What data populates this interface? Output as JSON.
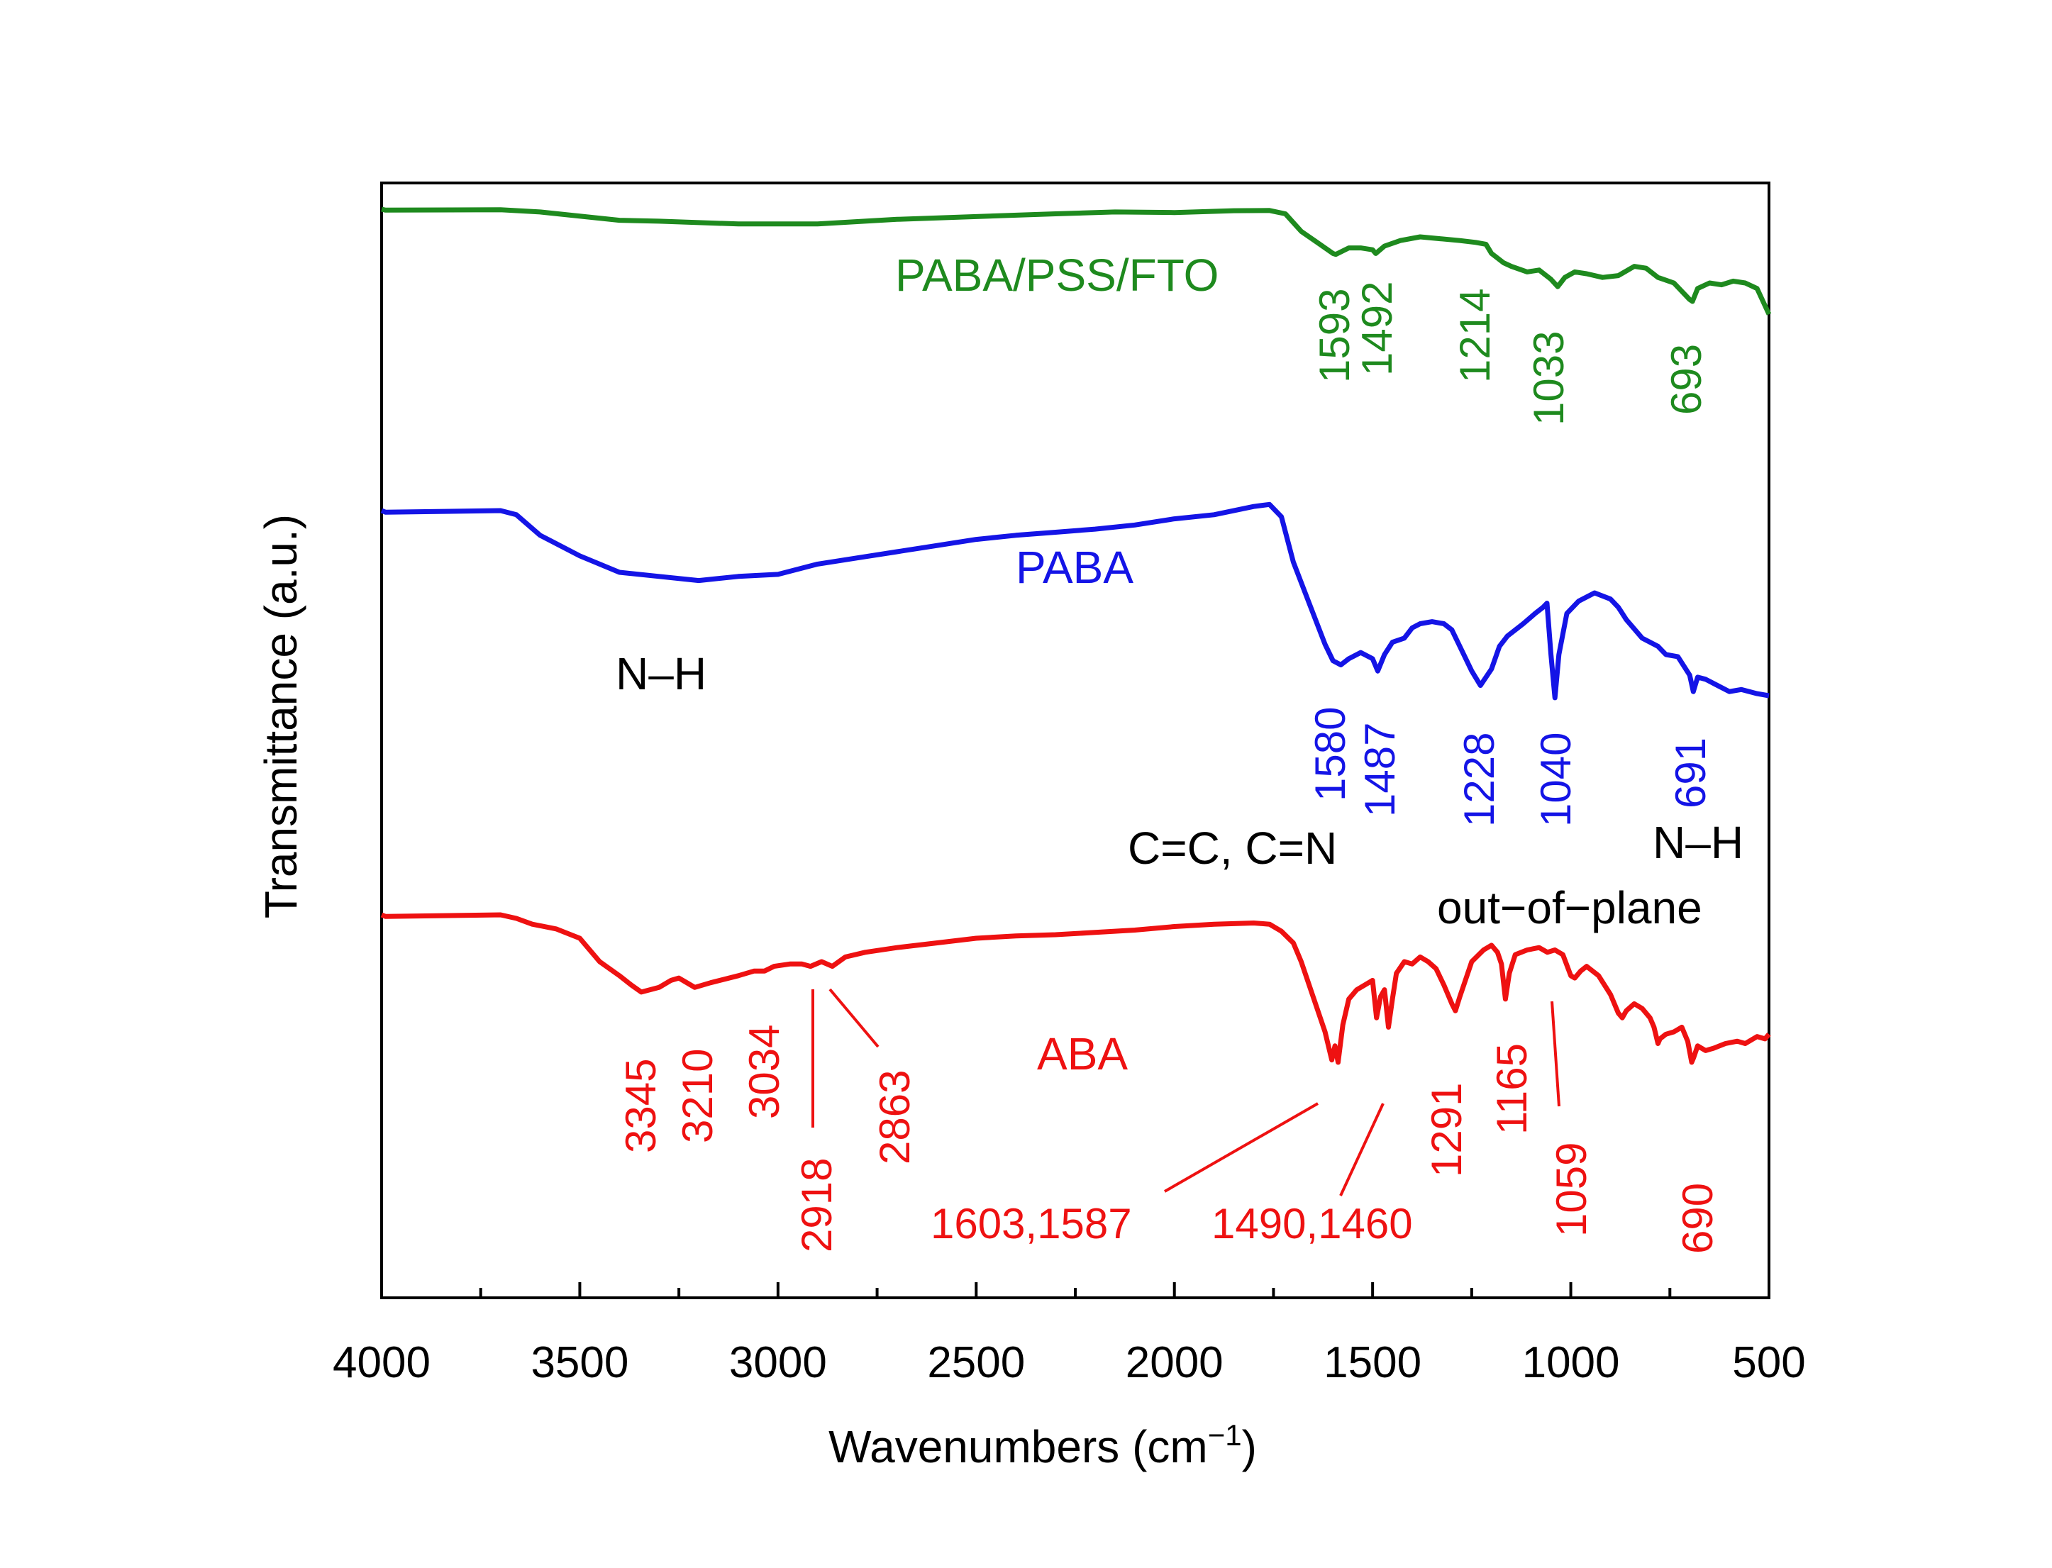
{
  "chart_data": {
    "type": "line",
    "title": "",
    "xlabel": "Wavenumbers (cm",
    "xlabel_sup": "−1",
    "xlabel_close": ")",
    "ylabel": "Transmittance (a.u.)",
    "xlim": [
      4000,
      500
    ],
    "x_reversed": true,
    "x_ticks": [
      4000,
      3500,
      3000,
      2500,
      2000,
      1500,
      1000,
      500
    ],
    "x_tick_labels": [
      "4000",
      "3500",
      "3000",
      "2500",
      "2000",
      "1500",
      "1000",
      "500"
    ],
    "y_ticks_shown": false,
    "grid": false,
    "legend": "none (series labelled in plot)",
    "colors": {
      "green": "#1e8a1e",
      "blue": "#1414e6",
      "red": "#ee1111",
      "black": "#000000"
    },
    "series": [
      {
        "name": "PABA/PSS/FTO",
        "color": "#1e8a1e",
        "points": [
          [
            4000,
            100
          ],
          [
            3990,
            99.5
          ],
          [
            3700,
            99.7
          ],
          [
            3600,
            98.5
          ],
          [
            3400,
            94
          ],
          [
            3300,
            93.5
          ],
          [
            3100,
            92
          ],
          [
            2900,
            92
          ],
          [
            2700,
            94.5
          ],
          [
            2500,
            96
          ],
          [
            2300,
            97.5
          ],
          [
            2150,
            98.5
          ],
          [
            2000,
            98.2
          ],
          [
            1850,
            99.2
          ],
          [
            1760,
            99.3
          ],
          [
            1720,
            97.5
          ],
          [
            1680,
            88
          ],
          [
            1640,
            82
          ],
          [
            1600,
            76
          ],
          [
            1593,
            75.5
          ],
          [
            1560,
            79
          ],
          [
            1530,
            79
          ],
          [
            1500,
            78
          ],
          [
            1492,
            76
          ],
          [
            1470,
            80
          ],
          [
            1430,
            83
          ],
          [
            1380,
            85
          ],
          [
            1330,
            84
          ],
          [
            1280,
            83
          ],
          [
            1240,
            82
          ],
          [
            1214,
            81
          ],
          [
            1200,
            76
          ],
          [
            1170,
            71
          ],
          [
            1150,
            69
          ],
          [
            1110,
            66
          ],
          [
            1080,
            67
          ],
          [
            1050,
            62
          ],
          [
            1033,
            58
          ],
          [
            1015,
            63
          ],
          [
            990,
            66
          ],
          [
            960,
            65
          ],
          [
            920,
            63
          ],
          [
            880,
            64
          ],
          [
            840,
            69
          ],
          [
            810,
            68
          ],
          [
            780,
            63
          ],
          [
            740,
            60
          ],
          [
            700,
            51
          ],
          [
            693,
            50
          ],
          [
            680,
            57
          ],
          [
            650,
            60
          ],
          [
            620,
            59
          ],
          [
            590,
            61
          ],
          [
            560,
            60
          ],
          [
            530,
            57
          ],
          [
            500,
            43
          ]
        ]
      },
      {
        "name": "PABA",
        "color": "#1414e6",
        "points": [
          [
            4000,
            100
          ],
          [
            3990,
            99.2
          ],
          [
            3700,
            100
          ],
          [
            3660,
            98
          ],
          [
            3600,
            88
          ],
          [
            3500,
            78
          ],
          [
            3400,
            70
          ],
          [
            3300,
            68
          ],
          [
            3200,
            66
          ],
          [
            3100,
            68
          ],
          [
            3000,
            69
          ],
          [
            2900,
            74
          ],
          [
            2800,
            77
          ],
          [
            2700,
            80
          ],
          [
            2600,
            83
          ],
          [
            2500,
            86
          ],
          [
            2400,
            88
          ],
          [
            2300,
            89.5
          ],
          [
            2200,
            91
          ],
          [
            2100,
            93
          ],
          [
            2000,
            96
          ],
          [
            1900,
            98
          ],
          [
            1800,
            102
          ],
          [
            1760,
            103
          ],
          [
            1730,
            97
          ],
          [
            1700,
            75
          ],
          [
            1660,
            55
          ],
          [
            1620,
            35
          ],
          [
            1600,
            27
          ],
          [
            1580,
            25
          ],
          [
            1560,
            28
          ],
          [
            1530,
            31
          ],
          [
            1500,
            28
          ],
          [
            1487,
            22
          ],
          [
            1470,
            30
          ],
          [
            1450,
            36
          ],
          [
            1420,
            38
          ],
          [
            1400,
            43
          ],
          [
            1380,
            45
          ],
          [
            1350,
            46
          ],
          [
            1320,
            45
          ],
          [
            1300,
            42
          ],
          [
            1280,
            34
          ],
          [
            1250,
            22
          ],
          [
            1228,
            15
          ],
          [
            1200,
            23
          ],
          [
            1180,
            34
          ],
          [
            1160,
            39
          ],
          [
            1120,
            45
          ],
          [
            1090,
            50
          ],
          [
            1070,
            53
          ],
          [
            1060,
            55
          ],
          [
            1050,
            30
          ],
          [
            1040,
            9
          ],
          [
            1030,
            30
          ],
          [
            1010,
            50
          ],
          [
            980,
            56
          ],
          [
            940,
            60
          ],
          [
            900,
            57
          ],
          [
            880,
            53
          ],
          [
            860,
            47
          ],
          [
            820,
            38
          ],
          [
            780,
            34
          ],
          [
            760,
            30
          ],
          [
            730,
            29
          ],
          [
            700,
            20
          ],
          [
            691,
            12
          ],
          [
            680,
            19
          ],
          [
            660,
            18
          ],
          [
            630,
            15
          ],
          [
            600,
            12
          ],
          [
            570,
            13
          ],
          [
            530,
            11
          ],
          [
            500,
            10
          ]
        ]
      },
      {
        "name": "ABA",
        "color": "#ee1111",
        "points": [
          [
            4000,
            100
          ],
          [
            3990,
            99.3
          ],
          [
            3700,
            100
          ],
          [
            3660,
            98.5
          ],
          [
            3620,
            96
          ],
          [
            3560,
            94
          ],
          [
            3500,
            90
          ],
          [
            3450,
            80
          ],
          [
            3400,
            74
          ],
          [
            3370,
            70
          ],
          [
            3345,
            67
          ],
          [
            3300,
            69
          ],
          [
            3270,
            72
          ],
          [
            3250,
            73
          ],
          [
            3230,
            71
          ],
          [
            3210,
            69
          ],
          [
            3170,
            71
          ],
          [
            3100,
            74
          ],
          [
            3060,
            76
          ],
          [
            3034,
            76
          ],
          [
            3010,
            78
          ],
          [
            2970,
            79
          ],
          [
            2940,
            79
          ],
          [
            2918,
            78
          ],
          [
            2890,
            80
          ],
          [
            2863,
            78
          ],
          [
            2830,
            82
          ],
          [
            2780,
            84
          ],
          [
            2700,
            86
          ],
          [
            2600,
            88
          ],
          [
            2500,
            90
          ],
          [
            2400,
            91
          ],
          [
            2300,
            91.5
          ],
          [
            2200,
            92.5
          ],
          [
            2100,
            93.5
          ],
          [
            2000,
            95
          ],
          [
            1900,
            96
          ],
          [
            1800,
            96.5
          ],
          [
            1760,
            96
          ],
          [
            1730,
            93
          ],
          [
            1700,
            88
          ],
          [
            1680,
            80
          ],
          [
            1660,
            70
          ],
          [
            1640,
            60
          ],
          [
            1620,
            50
          ],
          [
            1603,
            38
          ],
          [
            1595,
            44
          ],
          [
            1587,
            37
          ],
          [
            1575,
            53
          ],
          [
            1560,
            64
          ],
          [
            1540,
            68
          ],
          [
            1520,
            70
          ],
          [
            1500,
            72
          ],
          [
            1490,
            56
          ],
          [
            1480,
            65
          ],
          [
            1470,
            68
          ],
          [
            1460,
            52
          ],
          [
            1450,
            64
          ],
          [
            1440,
            75
          ],
          [
            1420,
            80
          ],
          [
            1400,
            79
          ],
          [
            1380,
            82
          ],
          [
            1360,
            80
          ],
          [
            1340,
            77
          ],
          [
            1320,
            70
          ],
          [
            1300,
            62
          ],
          [
            1291,
            59
          ],
          [
            1280,
            65
          ],
          [
            1250,
            80
          ],
          [
            1220,
            85
          ],
          [
            1200,
            87
          ],
          [
            1185,
            84
          ],
          [
            1175,
            79
          ],
          [
            1165,
            64
          ],
          [
            1155,
            75
          ],
          [
            1140,
            83
          ],
          [
            1110,
            85
          ],
          [
            1080,
            86
          ],
          [
            1059,
            84
          ],
          [
            1040,
            85
          ],
          [
            1020,
            83
          ],
          [
            1000,
            74
          ],
          [
            990,
            73
          ],
          [
            975,
            76
          ],
          [
            960,
            78
          ],
          [
            930,
            74
          ],
          [
            900,
            66
          ],
          [
            880,
            58
          ],
          [
            870,
            56
          ],
          [
            860,
            59
          ],
          [
            840,
            62
          ],
          [
            820,
            60
          ],
          [
            800,
            56
          ],
          [
            790,
            52
          ],
          [
            780,
            45
          ],
          [
            775,
            47
          ],
          [
            760,
            49
          ],
          [
            740,
            50
          ],
          [
            720,
            52
          ],
          [
            705,
            46
          ],
          [
            695,
            37
          ],
          [
            690,
            39
          ],
          [
            680,
            44
          ],
          [
            660,
            42
          ],
          [
            640,
            43
          ],
          [
            610,
            45
          ],
          [
            580,
            46
          ],
          [
            560,
            45
          ],
          [
            530,
            48
          ],
          [
            510,
            47
          ],
          [
            500,
            49
          ]
        ]
      }
    ],
    "series_labels": [
      "PABA/PSS/FTO",
      "PABA",
      "ABA"
    ],
    "peak_labels": {
      "green": [
        "1593",
        "1492",
        "1214",
        "1033",
        "693"
      ],
      "blue": [
        "1580",
        "1487",
        "1228",
        "1040",
        "691"
      ],
      "red": [
        "3345",
        "3210",
        "3034",
        "2918",
        "2863",
        "1603,1587",
        "1490,1460",
        "1291",
        "1165",
        "1059",
        "690"
      ]
    },
    "annotations": [
      "N–H",
      "C=C, C=N",
      "N–H",
      "out−of−plane"
    ]
  }
}
